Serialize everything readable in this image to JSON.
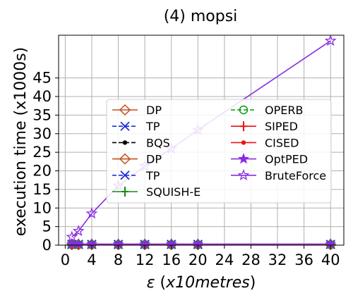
{
  "chart_data": {
    "type": "line",
    "title": "(4) mopsi",
    "xlabel_prefix": "ε",
    "xlabel_italic": "x10metres",
    "xlabel_open": " (",
    "xlabel_close": ")",
    "ylabel": "execution time (x1000s)",
    "x": [
      1,
      2,
      4,
      8,
      12,
      16,
      20,
      40
    ],
    "xticks": [
      0,
      4,
      8,
      12,
      16,
      20,
      24,
      28,
      32,
      36,
      40
    ],
    "yticks": [
      0,
      5,
      10,
      15,
      20,
      25,
      30,
      35,
      40,
      45
    ],
    "xlim": [
      -1,
      42
    ],
    "ylim": [
      0,
      56.5
    ],
    "grid": true,
    "legend_placement": "center",
    "series": [
      {
        "name": "DP",
        "color": "#c0501f",
        "marker": "diamond-open",
        "dash": "solid",
        "values": [
          0.2,
          0.2,
          0.2,
          0.2,
          0.2,
          0.2,
          0.2,
          0.2
        ]
      },
      {
        "name": "TP",
        "color": "#1f2fd6",
        "marker": "x",
        "dash": "dashed",
        "values": [
          0.2,
          0.2,
          0.2,
          0.2,
          0.2,
          0.2,
          0.2,
          0.2
        ]
      },
      {
        "name": "BQS",
        "color": "#000000",
        "marker": "dot",
        "dash": "dashed",
        "values": [
          0.1,
          0.1,
          0.1,
          0.1,
          0.1,
          0.1,
          0.1,
          0.1
        ]
      },
      {
        "name": "DP",
        "color": "#c0501f",
        "marker": "diamond-open",
        "dash": "solid",
        "values": [
          0.2,
          0.2,
          0.2,
          0.2,
          0.2,
          0.2,
          0.2,
          0.2
        ]
      },
      {
        "name": "TP",
        "color": "#1f2fd6",
        "marker": "x",
        "dash": "dashed",
        "values": [
          0.2,
          0.2,
          0.2,
          0.2,
          0.2,
          0.2,
          0.2,
          0.2
        ]
      },
      {
        "name": "SQUISH-E",
        "color": "#138a13",
        "marker": "cross",
        "dash": "solid",
        "values": [
          0.1,
          0.1,
          0.1,
          0.1,
          0.1,
          0.1,
          0.1,
          0.1
        ]
      },
      {
        "name": "OPERB",
        "color": "#0a9a0a",
        "marker": "circle-open",
        "dash": "dashed",
        "values": [
          0.1,
          0.1,
          0.1,
          0.1,
          0.1,
          0.1,
          0.1,
          0.1
        ]
      },
      {
        "name": "SIPED",
        "color": "#ee1111",
        "marker": "cross",
        "dash": "solid",
        "values": [
          0.1,
          0.1,
          0.1,
          0.1,
          0.1,
          0.1,
          0.1,
          0.1
        ]
      },
      {
        "name": "CISED",
        "color": "#ee1111",
        "marker": "dot",
        "dash": "solid",
        "values": [
          0.1,
          0.1,
          0.1,
          0.1,
          0.1,
          0.1,
          0.1,
          0.1
        ]
      },
      {
        "name": "OptPED",
        "color": "#8a2be2",
        "marker": "star",
        "dash": "solid",
        "values": [
          0.3,
          0.3,
          0.3,
          0.3,
          0.3,
          0.3,
          0.3,
          0.3
        ]
      },
      {
        "name": "BruteForce",
        "color": "#8a2be2",
        "marker": "star-open",
        "dash": "solid",
        "values": [
          2.2,
          3.8,
          8.5,
          16,
          21.3,
          26,
          31,
          55
        ]
      }
    ]
  }
}
